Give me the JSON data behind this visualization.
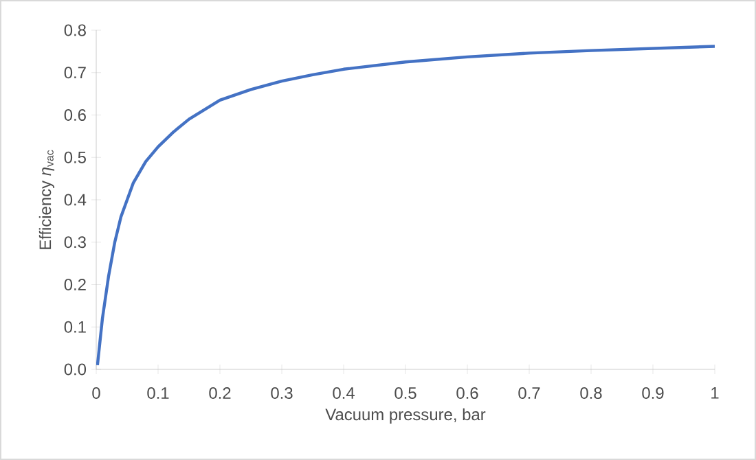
{
  "chart_data": {
    "type": "line",
    "xlabel": "Vacuum pressure, bar",
    "ylabel": "Efficiency *η*$_{vac}$",
    "x": [
      0.002,
      0.01,
      0.02,
      0.03,
      0.04,
      0.05,
      0.06,
      0.08,
      0.1,
      0.125,
      0.15,
      0.2,
      0.25,
      0.3,
      0.35,
      0.4,
      0.5,
      0.6,
      0.7,
      0.8,
      0.9,
      1.0
    ],
    "series": [
      {
        "color": "#4472c4",
        "values": [
          0.01,
          0.12,
          0.22,
          0.3,
          0.36,
          0.4,
          0.44,
          0.49,
          0.525,
          0.56,
          0.59,
          0.635,
          0.66,
          0.68,
          0.695,
          0.708,
          0.725,
          0.737,
          0.746,
          0.752,
          0.757,
          0.762
        ]
      }
    ],
    "xlim": [
      0,
      1
    ],
    "ylim": [
      0,
      0.8
    ],
    "xticks": [
      0,
      0.1,
      0.2,
      0.3,
      0.4,
      0.5,
      0.6,
      0.7,
      0.8,
      0.9,
      1
    ],
    "yticks": [
      {
        "value": 0,
        "label": "0.0"
      },
      0.1,
      0.2,
      0.3,
      0.4,
      0.5,
      0.6,
      0.7,
      0.8
    ],
    "grid": false,
    "legend": false,
    "marker": "none",
    "line_style": "solid"
  }
}
